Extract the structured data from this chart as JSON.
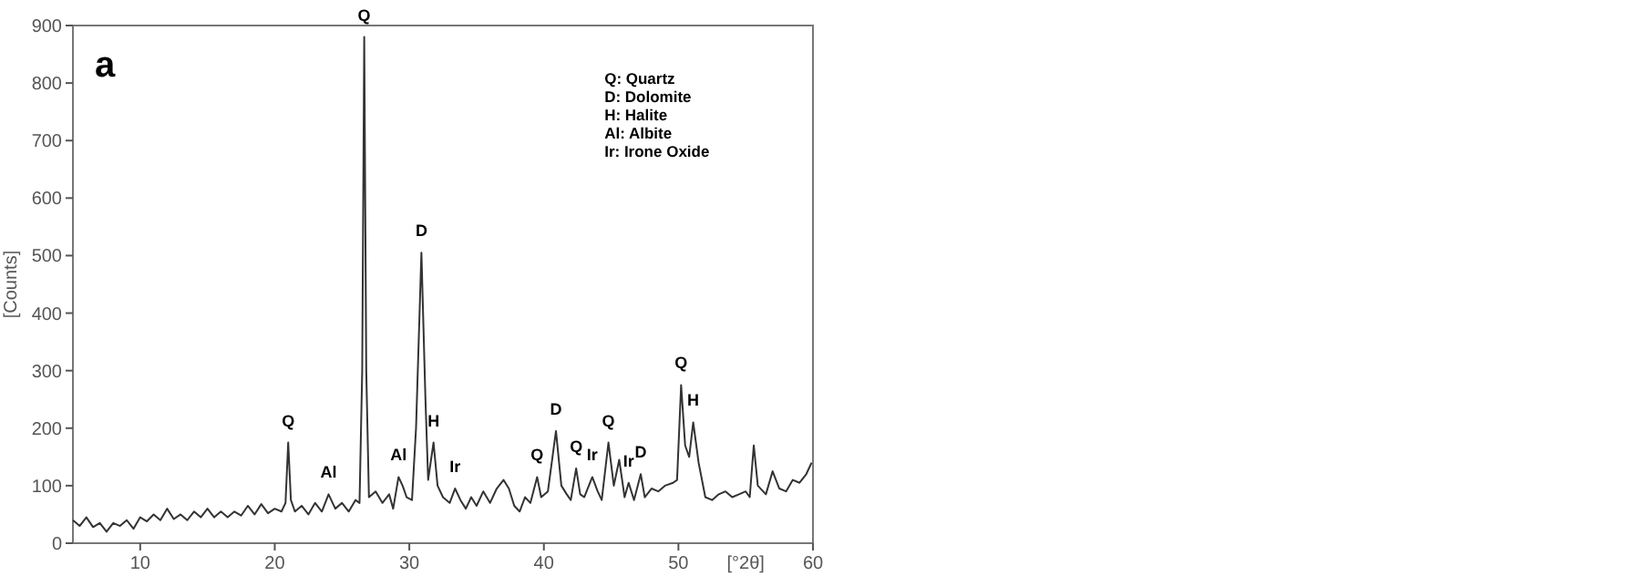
{
  "chart_data": {
    "type": "line",
    "title": "a",
    "xlabel": "[°2θ]",
    "ylabel": "[Counts]",
    "xlim": [
      5,
      60
    ],
    "xticks": [
      10,
      20,
      30,
      40,
      50,
      60
    ],
    "ylim": [
      0,
      900
    ],
    "yticks": [
      0,
      100,
      200,
      300,
      400,
      500,
      600,
      700,
      800,
      900
    ],
    "grid": false,
    "marker": "none",
    "line_style": "solid",
    "series": [
      {
        "color": "#333333",
        "x": [
          5,
          5.5,
          6,
          6.5,
          7,
          7.5,
          8,
          8.5,
          9,
          9.5,
          10,
          10.5,
          11,
          11.5,
          12,
          12.5,
          13,
          13.5,
          14,
          14.5,
          15,
          15.5,
          16,
          16.5,
          17,
          17.5,
          18,
          18.5,
          19,
          19.5,
          20,
          20.5,
          20.8,
          21,
          21.2,
          21.5,
          22,
          22.5,
          23,
          23.5,
          24,
          24.5,
          25,
          25.5,
          26,
          26.3,
          26.5,
          26.65,
          26.8,
          27,
          27.5,
          28,
          28.5,
          28.8,
          29.2,
          29.5,
          29.8,
          30.2,
          30.5,
          30.9,
          31.2,
          31.4,
          31.8,
          32.1,
          32.5,
          33,
          33.4,
          33.8,
          34.2,
          34.6,
          35,
          35.5,
          36,
          36.5,
          37,
          37.4,
          37.8,
          38.2,
          38.6,
          39,
          39.5,
          39.8,
          40.3,
          40.9,
          41.3,
          41.7,
          42,
          42.4,
          42.7,
          43,
          43.6,
          44,
          44.3,
          44.8,
          45.2,
          45.6,
          46,
          46.3,
          46.7,
          47.2,
          47.5,
          48,
          48.5,
          49,
          49.6,
          49.9,
          50.2,
          50.5,
          50.8,
          51.1,
          51.5,
          52,
          52.5,
          53,
          53.5,
          54,
          54.5,
          55,
          55.3,
          55.6,
          55.9,
          56.5,
          57,
          57.5,
          58,
          58.5,
          59,
          59.5,
          59.9
        ],
        "values": [
          40,
          30,
          45,
          28,
          35,
          20,
          35,
          30,
          40,
          25,
          45,
          38,
          50,
          40,
          60,
          42,
          50,
          40,
          55,
          45,
          60,
          45,
          55,
          45,
          55,
          48,
          65,
          50,
          68,
          52,
          60,
          55,
          70,
          175,
          75,
          55,
          65,
          50,
          70,
          55,
          85,
          60,
          70,
          55,
          75,
          70,
          300,
          880,
          300,
          80,
          90,
          70,
          85,
          60,
          115,
          100,
          80,
          75,
          200,
          505,
          250,
          110,
          175,
          100,
          80,
          70,
          95,
          75,
          60,
          80,
          65,
          90,
          70,
          95,
          110,
          95,
          65,
          55,
          80,
          70,
          115,
          80,
          90,
          195,
          100,
          85,
          75,
          130,
          85,
          80,
          115,
          90,
          75,
          175,
          100,
          145,
          80,
          105,
          75,
          120,
          80,
          95,
          90,
          100,
          105,
          110,
          275,
          170,
          150,
          210,
          140,
          80,
          75,
          85,
          90,
          80,
          85,
          90,
          80,
          170,
          100,
          85,
          125,
          95,
          90,
          110,
          105,
          120,
          140
        ]
      }
    ],
    "annotations": [
      {
        "text": "Q",
        "x": 21,
        "y": 175
      },
      {
        "text": "Al",
        "x": 24,
        "y": 85
      },
      {
        "text": "Q",
        "x": 26.65,
        "y": 880
      },
      {
        "text": "Al",
        "x": 29.2,
        "y": 115
      },
      {
        "text": "D",
        "x": 30.9,
        "y": 505
      },
      {
        "text": "H",
        "x": 31.8,
        "y": 175
      },
      {
        "text": "Ir",
        "x": 33.4,
        "y": 95
      },
      {
        "text": "Q",
        "x": 39.5,
        "y": 115
      },
      {
        "text": "D",
        "x": 40.9,
        "y": 195
      },
      {
        "text": "Q",
        "x": 42.4,
        "y": 130
      },
      {
        "text": "Ir",
        "x": 43.6,
        "y": 115
      },
      {
        "text": "Q",
        "x": 44.8,
        "y": 175
      },
      {
        "text": "Ir",
        "x": 46.3,
        "y": 105
      },
      {
        "text": "D",
        "x": 47.2,
        "y": 120
      },
      {
        "text": "Q",
        "x": 50.2,
        "y": 275
      },
      {
        "text": "H",
        "x": 51.1,
        "y": 210
      },
      "Q: Quartz",
      "D: Dolomite",
      "H: Halite",
      "Al: Albite",
      "Ir: Irone Oxide"
    ]
  }
}
